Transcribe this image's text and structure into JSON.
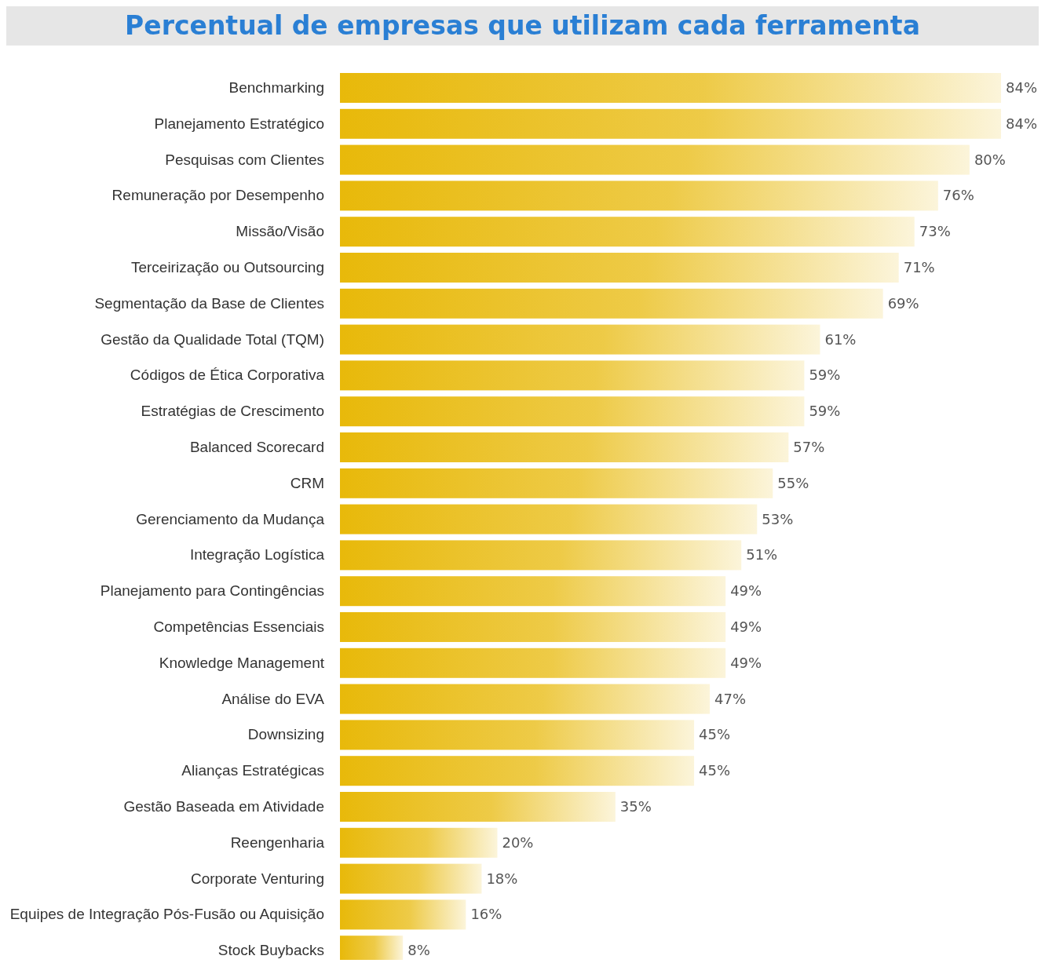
{
  "chart_data": {
    "type": "bar",
    "orientation": "horizontal",
    "title": "Percentual de empresas que utilizam cada ferramenta",
    "categories": [
      "Benchmarking",
      "Planejamento Estratégico",
      "Pesquisas com Clientes",
      "Remuneração por Desempenho",
      "Missão/Visão",
      "Terceirização ou Outsourcing",
      "Segmentação da Base de Clientes",
      "Gestão da Qualidade Total (TQM)",
      "Códigos de Ética Corporativa",
      "Estratégias de Crescimento",
      "Balanced Scorecard",
      "CRM",
      "Gerenciamento da Mudança",
      "Integração Logística",
      "Planejamento para Contingências",
      "Competências Essenciais",
      "Knowledge Management",
      "Análise do EVA",
      "Downsizing",
      "Alianças Estratégicas",
      "Gestão Baseada em Atividade",
      "Reengenharia",
      "Corporate Venturing",
      "Equipes de Integração Pós-Fusão ou Aquisição",
      "Stock Buybacks"
    ],
    "values": [
      84,
      84,
      80,
      76,
      73,
      71,
      69,
      61,
      59,
      59,
      57,
      55,
      53,
      51,
      49,
      49,
      49,
      47,
      45,
      45,
      35,
      20,
      18,
      16,
      8
    ],
    "value_labels": [
      "84%",
      "84%",
      "80%",
      "76%",
      "73%",
      "71%",
      "69%",
      "61%",
      "59%",
      "59%",
      "57%",
      "55%",
      "53%",
      "51%",
      "49%",
      "49%",
      "49%",
      "47%",
      "45%",
      "45%",
      "35%",
      "20%",
      "18%",
      "16%",
      "8%"
    ],
    "color": "#e8b90a"
  }
}
